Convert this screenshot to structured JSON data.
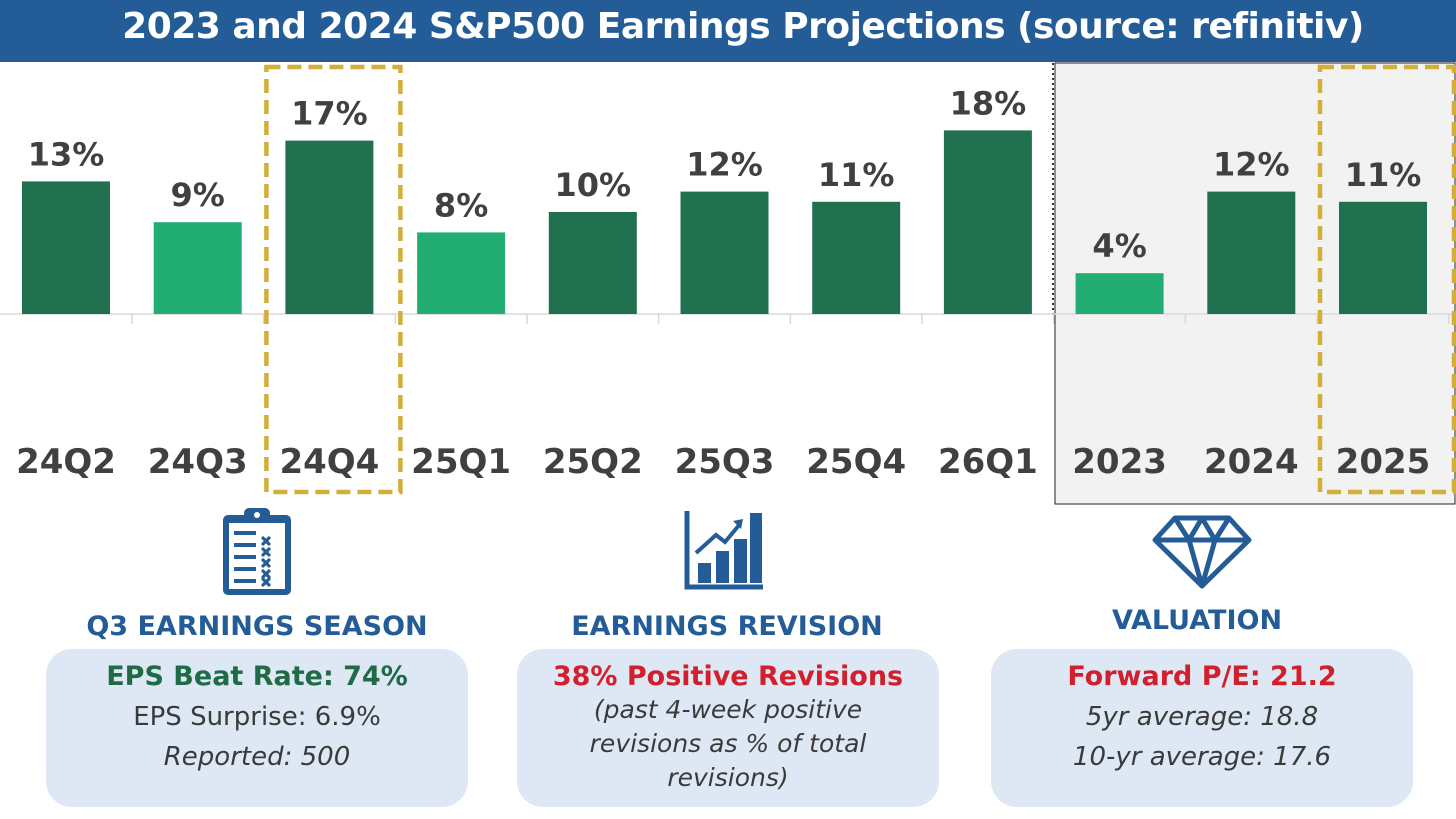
{
  "header": {
    "title": "2023 and 2024 S&P500 Earnings Projections (source: refinitiv)"
  },
  "colors": {
    "header_bg": "#245c97",
    "bar_dark": "#217150",
    "bar_light": "#22ad72",
    "highlight": "#d4ae3a",
    "panel_bg": "#f2f2f2",
    "accent_red": "#d11f2d",
    "accent_green": "#1e6b45"
  },
  "chart_data": {
    "type": "bar",
    "categories": [
      "24Q2",
      "24Q3",
      "24Q4",
      "25Q1",
      "25Q2",
      "25Q3",
      "25Q4",
      "26Q1",
      "2023",
      "2024",
      "2025"
    ],
    "values": [
      13,
      9,
      17,
      8,
      10,
      12,
      11,
      18,
      4,
      12,
      11
    ],
    "labels": [
      "13%",
      "9%",
      "17%",
      "8%",
      "10%",
      "12%",
      "11%",
      "18%",
      "4%",
      "12%",
      "11%"
    ],
    "bar_colors": [
      "dark",
      "light",
      "dark",
      "light",
      "dark",
      "dark",
      "dark",
      "dark",
      "light",
      "dark",
      "dark"
    ],
    "highlighted": [
      "24Q4",
      "2025"
    ],
    "annual_panel": [
      "2023",
      "2024",
      "2025"
    ],
    "unit": "%"
  },
  "sections": [
    {
      "icon": "clipboard-checklist-icon",
      "title": "Q3 EARNINGS SEASON",
      "headline": "EPS Beat Rate: 74%",
      "headline_color": "#1e6b45",
      "line1": "EPS Surprise: 6.9%",
      "line2": "Reported: 500"
    },
    {
      "icon": "rising-bar-chart-icon",
      "title": "EARNINGS REVISION",
      "headline": "38% Positive Revisions",
      "headline_color": "#d11f2d",
      "note_lines": [
        "(past 4-week positive",
        "revisions as % of total",
        "revisions)"
      ]
    },
    {
      "icon": "diamond-icon",
      "title": "VALUATION",
      "headline": "Forward P/E: 21.2",
      "headline_color": "#d11f2d",
      "line1": "5yr average: 18.8",
      "line2": "10-yr average: 17.6"
    }
  ]
}
